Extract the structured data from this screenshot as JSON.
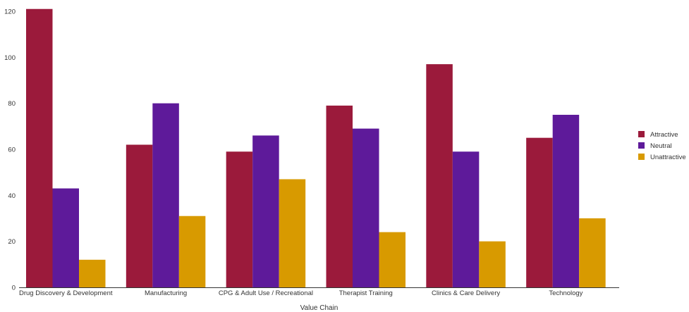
{
  "chart_data": {
    "type": "bar",
    "title": "",
    "xlabel": "Value Chain",
    "ylabel": "",
    "ylim": [
      0,
      120
    ],
    "yticks": [
      0,
      20,
      40,
      60,
      80,
      100,
      120
    ],
    "grid": false,
    "legend_position": "right",
    "categories": [
      "Drug Discovery & Development",
      "Manufacturing",
      "CPG & Adult Use / Recreational",
      "Therapist Training",
      "Clinics & Care Delivery",
      "Technology"
    ],
    "series": [
      {
        "name": "Attractive",
        "color": "#9b1a3b",
        "values": [
          121,
          62,
          59,
          79,
          97,
          65
        ]
      },
      {
        "name": "Neutral",
        "color": "#5e1a9a",
        "values": [
          43,
          80,
          66,
          69,
          59,
          75
        ]
      },
      {
        "name": "Unattractive",
        "color": "#d89a00",
        "values": [
          12,
          31,
          47,
          24,
          20,
          30
        ]
      }
    ]
  }
}
